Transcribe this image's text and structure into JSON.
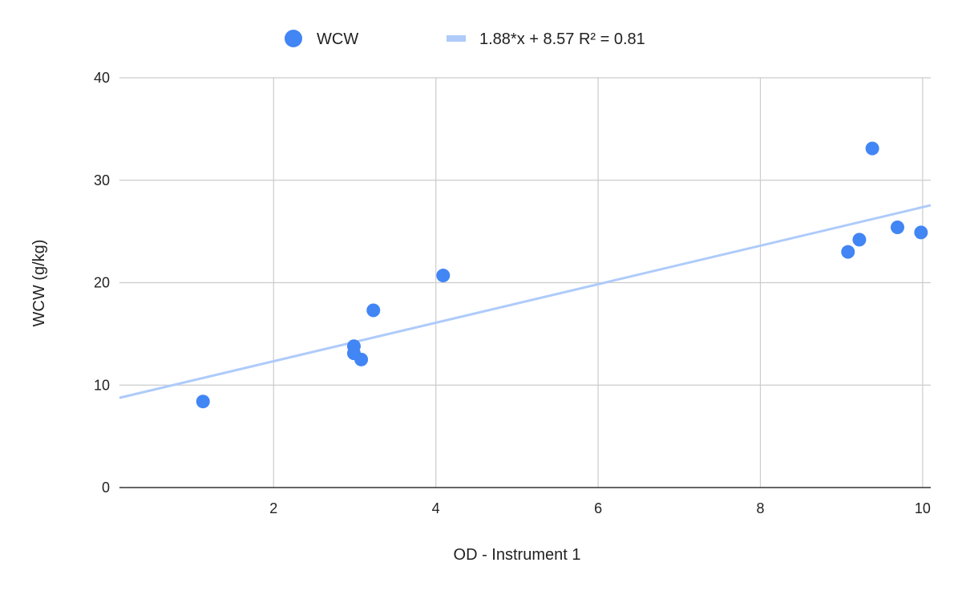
{
  "chart_data": {
    "type": "scatter",
    "xlabel": "OD - Instrument 1",
    "ylabel": "WCW (g/kg)",
    "xlim": [
      0.1,
      10.1
    ],
    "ylim": [
      0,
      40
    ],
    "x_ticks": [
      2,
      4,
      6,
      8,
      10
    ],
    "y_ticks": [
      0,
      10,
      20,
      30,
      40
    ],
    "grid": true,
    "legend_position": "top",
    "series": [
      {
        "name": "WCW",
        "color": "#4285f4",
        "marker": "circle",
        "points": [
          {
            "x": 1.13,
            "y": 8.4
          },
          {
            "x": 2.99,
            "y": 13.8
          },
          {
            "x": 2.99,
            "y": 13.1
          },
          {
            "x": 3.08,
            "y": 12.5
          },
          {
            "x": 3.23,
            "y": 17.3
          },
          {
            "x": 4.09,
            "y": 20.7
          },
          {
            "x": 9.08,
            "y": 23.0
          },
          {
            "x": 9.22,
            "y": 24.2
          },
          {
            "x": 9.38,
            "y": 33.1
          },
          {
            "x": 9.69,
            "y": 25.4
          },
          {
            "x": 9.98,
            "y": 24.9
          }
        ]
      }
    ],
    "trendline": {
      "label": "1.88*x + 8.57 R² = 0.81",
      "slope": 1.88,
      "intercept": 8.57,
      "r2": 0.81,
      "color": "#aecbfa"
    }
  }
}
